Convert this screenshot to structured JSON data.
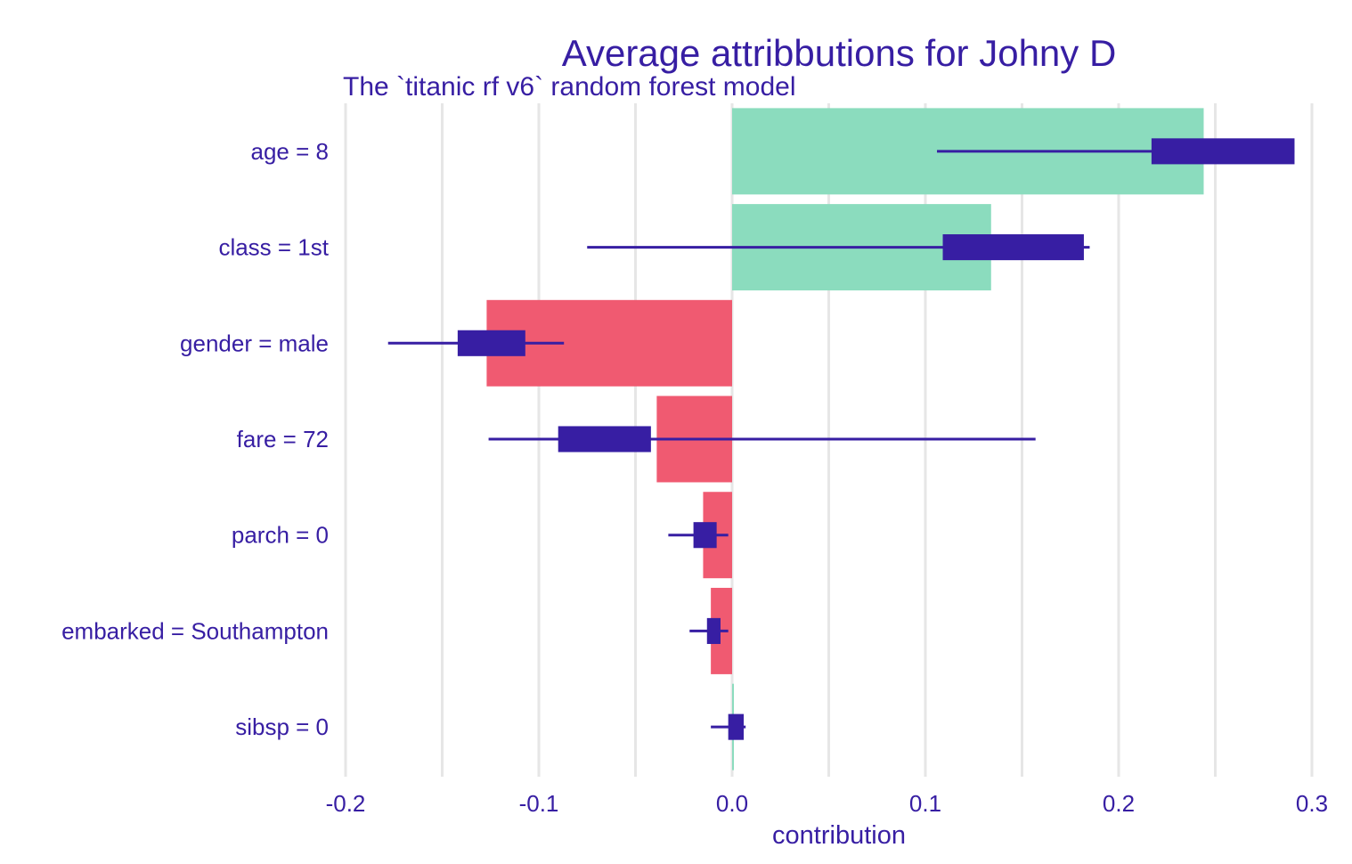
{
  "chart_data": {
    "type": "bar",
    "title": "Average attribbutions for Johny D",
    "subtitle": "The `titanic  rf  v6` random forest model",
    "xlabel": "contribution",
    "ylabel": "",
    "xlim": [
      -0.2,
      0.3
    ],
    "xticks": [
      -0.2,
      -0.15,
      -0.1,
      -0.05,
      0.0,
      0.05,
      0.1,
      0.15,
      0.2,
      0.25,
      0.3
    ],
    "xtick_labels": [
      "-0.2",
      "",
      "-0.1",
      "",
      "0.0",
      "",
      "0.1",
      "",
      "0.2",
      "",
      "0.3"
    ],
    "categories": [
      "age = 8",
      "class = 1st",
      "gender = male",
      "fare = 72",
      "parch = 0",
      "embarked = Southampton",
      "sibsp = 0"
    ],
    "values": [
      0.244,
      0.134,
      -0.127,
      -0.039,
      -0.015,
      -0.011,
      0.0005
    ],
    "boxes": [
      {
        "whisker_low": 0.106,
        "q1": 0.217,
        "q3": 0.291,
        "whisker_high": 0.291
      },
      {
        "whisker_low": -0.075,
        "q1": 0.109,
        "q3": 0.182,
        "whisker_high": 0.185
      },
      {
        "whisker_low": -0.178,
        "q1": -0.142,
        "q3": -0.107,
        "whisker_high": -0.087
      },
      {
        "whisker_low": -0.126,
        "q1": -0.09,
        "q3": -0.042,
        "whisker_high": 0.157
      },
      {
        "whisker_low": -0.033,
        "q1": -0.02,
        "q3": -0.008,
        "whisker_high": -0.002
      },
      {
        "whisker_low": -0.022,
        "q1": -0.013,
        "q3": -0.006,
        "whisker_high": -0.002
      },
      {
        "whisker_low": -0.011,
        "q1": -0.002,
        "q3": 0.006,
        "whisker_high": 0.007
      }
    ],
    "grid": true,
    "legend": "none",
    "colors": {
      "positive": "#8bdcbe",
      "negative": "#f05a71",
      "box": "#371ea3",
      "text": "#371ea3",
      "grid": "#e6e6e6"
    }
  }
}
